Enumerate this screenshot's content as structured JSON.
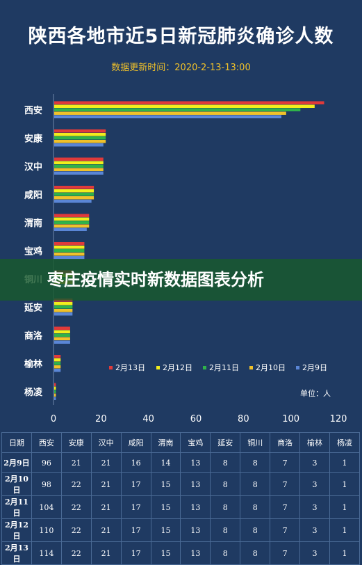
{
  "title": "陕西各地市近5日新冠肺炎确诊人数",
  "subtitle": "数据更新时间：2020-2-13-13:00",
  "overlay_banner": "枣庄疫情实时新数据图表分析",
  "unit_label": "单位：人",
  "colors": {
    "background": "#1f3a62",
    "feb13": "#e03a3a",
    "feb12": "#f2ee1c",
    "feb11": "#2fb34a",
    "feb10": "#f0c12a",
    "feb9": "#5a86d6"
  },
  "chart_data": {
    "type": "bar",
    "orientation": "horizontal",
    "title": "陕西各地市近5日新冠肺炎确诊人数",
    "subtitle": "数据更新时间：2020-2-13-13:00",
    "categories": [
      "西安",
      "安康",
      "汉中",
      "咸阳",
      "渭南",
      "宝鸡",
      "铜川",
      "延安",
      "商洛",
      "榆林",
      "杨凌"
    ],
    "xlim": [
      0,
      120
    ],
    "xticks": [
      0,
      20,
      40,
      60,
      80,
      100,
      120
    ],
    "legend_position": "bottom-right",
    "series": [
      {
        "name": "2月13日",
        "color": "#e03a3a",
        "values": [
          114,
          22,
          21,
          17,
          15,
          13,
          8,
          8,
          7,
          3,
          1
        ]
      },
      {
        "name": "2月12日",
        "color": "#f2ee1c",
        "values": [
          110,
          22,
          21,
          17,
          15,
          13,
          8,
          8,
          7,
          3,
          1
        ]
      },
      {
        "name": "2月11日",
        "color": "#2fb34a",
        "values": [
          104,
          22,
          21,
          17,
          15,
          13,
          8,
          8,
          7,
          3,
          1
        ]
      },
      {
        "name": "2月10日",
        "color": "#f0c12a",
        "values": [
          98,
          22,
          21,
          17,
          15,
          13,
          8,
          8,
          7,
          3,
          1
        ]
      },
      {
        "name": "2月9日",
        "color": "#5a86d6",
        "values": [
          96,
          21,
          21,
          16,
          14,
          13,
          8,
          8,
          7,
          3,
          1
        ]
      }
    ]
  },
  "table": {
    "headers": [
      "日期",
      "西安",
      "安康",
      "汉中",
      "咸阳",
      "渭南",
      "宝鸡",
      "延安",
      "铜川",
      "商洛",
      "榆林",
      "杨凌"
    ],
    "rows": [
      [
        "2月9日",
        "96",
        "21",
        "21",
        "16",
        "14",
        "13",
        "8",
        "8",
        "7",
        "3",
        "1"
      ],
      [
        "2月10日",
        "98",
        "22",
        "21",
        "17",
        "15",
        "13",
        "8",
        "8",
        "7",
        "3",
        "1"
      ],
      [
        "2月11日",
        "104",
        "22",
        "21",
        "17",
        "15",
        "13",
        "8",
        "8",
        "7",
        "3",
        "1"
      ],
      [
        "2月12日",
        "110",
        "22",
        "21",
        "17",
        "15",
        "13",
        "8",
        "8",
        "7",
        "3",
        "1"
      ],
      [
        "2月13日",
        "114",
        "22",
        "21",
        "17",
        "15",
        "13",
        "8",
        "8",
        "7",
        "3",
        "1"
      ]
    ]
  }
}
